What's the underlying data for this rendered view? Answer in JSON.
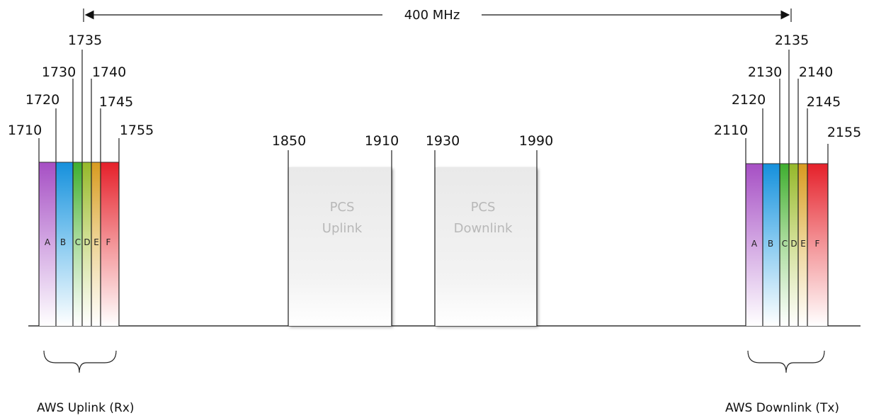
{
  "span_label": "400 MHz",
  "aws_uplink": {
    "caption": "AWS Uplink (Rx)",
    "edges": [
      "1710",
      "1720",
      "1730",
      "1735",
      "1740",
      "1745",
      "1755"
    ],
    "blocks": [
      {
        "letter": "A",
        "color": "#a855c8"
      },
      {
        "letter": "B",
        "color": "#1e9be0"
      },
      {
        "letter": "C",
        "color": "#55bb3a"
      },
      {
        "letter": "D",
        "color": "#9fc02a"
      },
      {
        "letter": "E",
        "color": "#d9a020"
      },
      {
        "letter": "F",
        "color": "#e8232b"
      }
    ]
  },
  "pcs_uplink": {
    "label_line1": "PCS",
    "label_line2": "Uplink",
    "start": "1850",
    "end": "1910"
  },
  "pcs_downlink": {
    "label_line1": "PCS",
    "label_line2": "Downlink",
    "start": "1930",
    "end": "1990"
  },
  "aws_downlink": {
    "caption": "AWS Downlink (Tx)",
    "edges": [
      "2110",
      "2120",
      "2130",
      "2135",
      "2140",
      "2145",
      "2155"
    ],
    "blocks": [
      {
        "letter": "A",
        "color": "#a855c8"
      },
      {
        "letter": "B",
        "color": "#1e9be0"
      },
      {
        "letter": "C",
        "color": "#55bb3a"
      },
      {
        "letter": "D",
        "color": "#9fc02a"
      },
      {
        "letter": "E",
        "color": "#d9a020"
      },
      {
        "letter": "F",
        "color": "#e8232b"
      }
    ]
  }
}
